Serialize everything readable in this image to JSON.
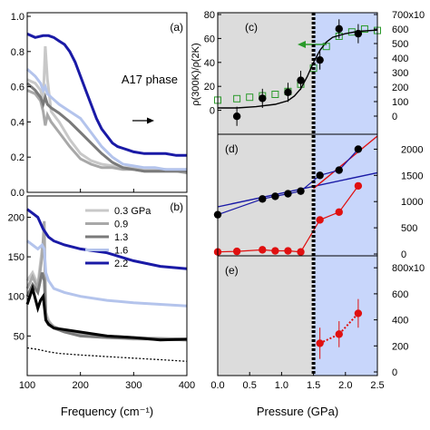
{
  "chart_data": [
    {
      "panel": "(a)",
      "type": "line",
      "annotation": "A17 phase",
      "xlim": [
        100,
        400
      ],
      "ylim": [
        0,
        1.0
      ],
      "xticks": [
        100,
        200,
        300,
        400
      ],
      "yticks": [
        "0.0",
        "0.2",
        "0.4",
        "0.6",
        "0.8",
        "1.0"
      ],
      "series": [
        {
          "color": "#c8c8c8",
          "x": [
            100,
            115,
            125,
            130,
            134,
            138,
            145,
            160,
            180,
            200,
            220,
            240,
            260,
            280,
            300,
            320,
            340,
            360,
            380,
            400
          ],
          "y": [
            0.64,
            0.62,
            0.58,
            0.52,
            0.83,
            0.64,
            0.46,
            0.4,
            0.3,
            0.22,
            0.18,
            0.16,
            0.15,
            0.14,
            0.14,
            0.13,
            0.13,
            0.13,
            0.12,
            0.12
          ]
        },
        {
          "color": "#a8a8a8",
          "x": [
            100,
            115,
            125,
            130,
            134,
            138,
            145,
            160,
            180,
            200,
            220,
            240,
            260,
            280,
            300,
            320,
            340,
            360,
            380,
            400
          ],
          "y": [
            0.58,
            0.56,
            0.52,
            0.46,
            0.38,
            0.44,
            0.4,
            0.34,
            0.26,
            0.19,
            0.16,
            0.14,
            0.14,
            0.13,
            0.13,
            0.12,
            0.12,
            0.12,
            0.12,
            0.11
          ]
        },
        {
          "color": "#7a7a7a",
          "x": [
            100,
            115,
            125,
            130,
            134,
            138,
            145,
            160,
            180,
            200,
            220,
            240,
            260,
            280,
            300,
            320,
            340,
            360,
            380,
            400
          ],
          "y": [
            0.62,
            0.58,
            0.54,
            0.5,
            0.54,
            0.5,
            0.48,
            0.45,
            0.4,
            0.34,
            0.28,
            0.22,
            0.17,
            0.14,
            0.13,
            0.12,
            0.12,
            0.12,
            0.12,
            0.12
          ]
        },
        {
          "color": "#b4c4ec",
          "x": [
            100,
            115,
            125,
            130,
            134,
            138,
            145,
            160,
            180,
            200,
            220,
            240,
            260,
            280,
            300,
            320,
            340,
            360,
            380,
            400
          ],
          "y": [
            0.7,
            0.66,
            0.62,
            0.58,
            0.6,
            0.56,
            0.54,
            0.5,
            0.46,
            0.42,
            0.34,
            0.26,
            0.2,
            0.16,
            0.15,
            0.14,
            0.14,
            0.13,
            0.13,
            0.13
          ]
        },
        {
          "color": "#1a1aa6",
          "x": [
            100,
            115,
            130,
            140,
            150,
            160,
            170,
            180,
            190,
            200,
            210,
            220,
            230,
            240,
            250,
            260,
            270,
            280,
            290,
            300,
            320,
            340,
            360,
            380,
            400
          ],
          "y": [
            0.9,
            0.88,
            0.89,
            0.89,
            0.88,
            0.86,
            0.84,
            0.8,
            0.74,
            0.66,
            0.58,
            0.5,
            0.42,
            0.36,
            0.32,
            0.28,
            0.26,
            0.25,
            0.24,
            0.23,
            0.22,
            0.22,
            0.22,
            0.21,
            0.21
          ]
        }
      ]
    },
    {
      "panel": "(b)",
      "type": "line",
      "xlabel": "Frequency (cm⁻¹)",
      "xlim": [
        100,
        400
      ],
      "ylim": [
        0,
        220
      ],
      "xticks": [
        100,
        200,
        300,
        400
      ],
      "yticks": [
        "50",
        "100",
        "150",
        "200"
      ],
      "legend": {
        "placement": "top-right",
        "entries": [
          "0.3 GPa",
          "0.9",
          "1.3",
          "1.6",
          "2.2"
        ]
      },
      "series": [
        {
          "name": "0.3 GPa",
          "color": "#c8c8c8",
          "x": [
            100,
            110,
            120,
            128,
            132,
            135,
            140,
            150,
            170,
            200,
            250,
            300,
            350,
            400
          ],
          "y": [
            120,
            130,
            115,
            160,
            175,
            80,
            70,
            60,
            55,
            50,
            48,
            46,
            46,
            45
          ]
        },
        {
          "name": "0.9",
          "color": "#a8a8a8",
          "x": [
            100,
            110,
            120,
            128,
            132,
            135,
            140,
            150,
            170,
            200,
            250,
            300,
            350,
            400
          ],
          "y": [
            110,
            125,
            110,
            150,
            195,
            75,
            68,
            62,
            56,
            52,
            50,
            48,
            47,
            46
          ]
        },
        {
          "name": "1.3",
          "color": "#7a7a7a",
          "x": [
            100,
            110,
            120,
            128,
            132,
            135,
            140,
            150,
            170,
            200,
            250,
            300,
            350,
            400
          ],
          "y": [
            100,
            115,
            105,
            130,
            120,
            70,
            64,
            60,
            55,
            50,
            48,
            47,
            46,
            45
          ]
        },
        {
          "name": "1.6",
          "color": "#b4c4ec",
          "x": [
            100,
            110,
            120,
            128,
            132,
            135,
            140,
            150,
            170,
            200,
            250,
            300,
            350,
            400
          ],
          "y": [
            170,
            165,
            160,
            165,
            160,
            130,
            120,
            110,
            105,
            100,
            95,
            92,
            90,
            88
          ]
        },
        {
          "name": "2.2",
          "color": "#1a1aa6",
          "x": [
            100,
            110,
            120,
            130,
            140,
            150,
            170,
            200,
            250,
            300,
            350,
            400
          ],
          "y": [
            210,
            205,
            200,
            185,
            175,
            170,
            165,
            160,
            155,
            145,
            138,
            135
          ]
        },
        {
          "color": "#000000",
          "x": [
            100,
            110,
            120,
            125,
            130,
            135,
            140,
            150,
            170,
            200,
            250,
            300,
            350,
            400
          ],
          "y": [
            90,
            110,
            85,
            95,
            100,
            70,
            65,
            60,
            58,
            55,
            50,
            48,
            45,
            46
          ]
        },
        {
          "color": "#000000",
          "dashed": true,
          "x": [
            100,
            120,
            140,
            160,
            200,
            250,
            300,
            350,
            400
          ],
          "y": [
            35,
            33,
            30,
            28,
            26,
            24,
            22,
            20,
            18
          ]
        }
      ]
    },
    {
      "panel": "(c)",
      "type": "scatter",
      "ylabel": "ρ(300K)/ρ(2K)",
      "ylim": [
        -20,
        80
      ],
      "yticks": [
        "0",
        "20",
        "40",
        "60",
        "80"
      ],
      "right_yticks": [
        "0",
        "100",
        "200",
        "300",
        "400",
        "500",
        "600",
        "700x10"
      ],
      "right_ylim": [
        0,
        700
      ],
      "black": {
        "x": [
          0.3,
          0.7,
          1.1,
          1.3,
          1.6,
          1.9,
          2.2
        ],
        "y": [
          -5,
          10,
          15,
          25,
          42,
          68,
          64
        ],
        "err": [
          8,
          8,
          8,
          8,
          8,
          8,
          8
        ]
      },
      "green": {
        "x": [
          0.0,
          0.3,
          0.5,
          0.7,
          0.9,
          1.1,
          1.3,
          1.5,
          1.7,
          1.9,
          2.1,
          2.3,
          2.5
        ],
        "y": [
          110,
          120,
          130,
          140,
          150,
          170,
          220,
          330,
          480,
          550,
          580,
          600,
          590
        ]
      },
      "fit_curve": {
        "x": [
          0.0,
          0.3,
          0.6,
          0.9,
          1.1,
          1.2,
          1.3,
          1.4,
          1.5,
          1.6,
          1.7,
          1.8,
          2.0,
          2.2,
          2.5
        ],
        "y": [
          2,
          2,
          3,
          5,
          8,
          12,
          18,
          28,
          40,
          50,
          57,
          61,
          64,
          66,
          67
        ]
      }
    },
    {
      "panel": "(d)",
      "type": "line",
      "right_yticks": [
        "0",
        "500",
        "1000",
        "1500",
        "2000"
      ],
      "right_ylim": [
        0,
        2250
      ],
      "black": {
        "x": [
          0.0,
          0.7,
          0.9,
          1.1,
          1.3,
          1.6,
          1.9,
          2.2
        ],
        "y": [
          750,
          1050,
          1100,
          1150,
          1200,
          1500,
          1600,
          2000
        ]
      },
      "red": {
        "x": [
          0.0,
          0.3,
          0.7,
          0.9,
          1.1,
          1.3,
          1.6,
          1.9,
          2.2
        ],
        "y": [
          40,
          50,
          80,
          60,
          60,
          40,
          650,
          800,
          1300
        ]
      },
      "blue_line": {
        "x": [
          0.0,
          2.5
        ],
        "y": [
          900,
          1550
        ]
      },
      "red_line": {
        "x": [
          1.5,
          2.5
        ],
        "y": [
          1250,
          2250
        ]
      }
    },
    {
      "panel": "(e)",
      "type": "scatter",
      "xlabel": "Pressure (GPa)",
      "xlim": [
        0,
        2.5
      ],
      "xticks": [
        "0.0",
        "0.5",
        "1.0",
        "1.5",
        "2.0",
        "2.5"
      ],
      "right_yticks": [
        "0",
        "200",
        "400",
        "600",
        "800x10"
      ],
      "right_ylim": [
        0,
        850
      ],
      "red": {
        "x": [
          1.6,
          1.9,
          2.2
        ],
        "y": [
          220,
          290,
          450
        ],
        "err": [
          120,
          100,
          110
        ]
      }
    }
  ],
  "colors": {
    "shade_gray": "#dcdcdc",
    "shade_blue": "#c8d6fb",
    "green": "#2a9a2a",
    "red": "#e01010",
    "blue": "#1a1aa6"
  }
}
